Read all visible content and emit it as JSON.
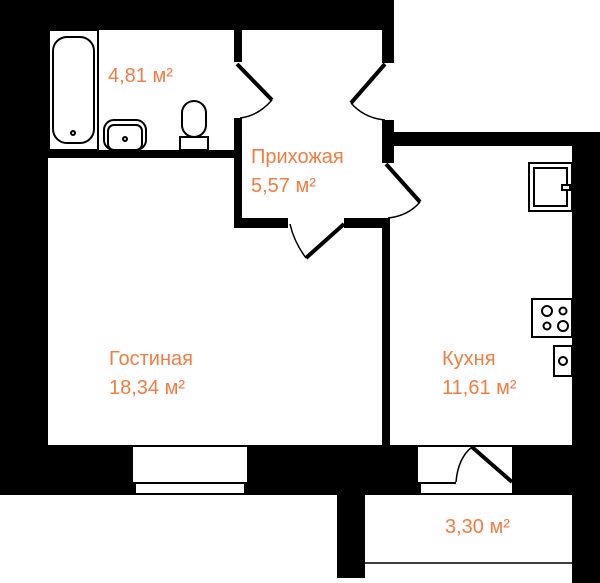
{
  "colors": {
    "label": "#f47c42",
    "wall": "#000000",
    "background": "#ffffff"
  },
  "rooms": {
    "bathroom": {
      "name": "",
      "area": "4,81 м²"
    },
    "hallway": {
      "name": "Прихожая",
      "area": "5,57 м²"
    },
    "living_room": {
      "name": "Гостиная",
      "area": "18,34 м²"
    },
    "kitchen": {
      "name": "Кухня",
      "area": "11,61 м²"
    },
    "balcony": {
      "name": "",
      "area": "3,30 м²"
    }
  },
  "fixtures": [
    "bathtub-icon",
    "washbasin-icon",
    "toilet-icon",
    "fridge-icon",
    "stove-icon",
    "kitchen-sink-icon"
  ]
}
